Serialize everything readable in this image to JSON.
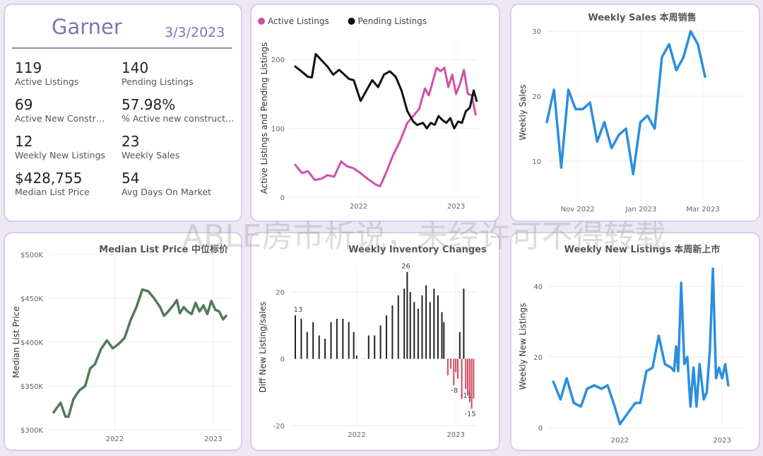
{
  "kpi": {
    "city": "Garner",
    "date": "3/3/2023",
    "metrics": [
      {
        "value": "119",
        "label": "Active Listings"
      },
      {
        "value": "140",
        "label": "Pending Listings"
      },
      {
        "value": "69",
        "label": "Active New Constructi..."
      },
      {
        "value": "57.98%",
        "label": "% Active new constructions"
      },
      {
        "value": "12",
        "label": "Weekly New Listings"
      },
      {
        "value": "23",
        "label": "Weekly Sales"
      },
      {
        "value": "$428,755",
        "label": "Median List Price"
      },
      {
        "value": "54",
        "label": "Avg Days On Market"
      }
    ]
  },
  "watermark": "ABLE房市析说，未经许可不得转载",
  "colors": {
    "active": "#d050a8",
    "pending": "#111111",
    "blue": "#2b8ee0",
    "green": "#527a5a",
    "negative": "#d04a5e",
    "grid": "#eeeeee"
  },
  "chart_data": [
    {
      "id": "listings",
      "type": "line",
      "title": "",
      "xlabel": "",
      "ylabel": "Active Listings and Pending Listings",
      "legend": "top-left",
      "ylim": [
        0,
        230
      ],
      "yticks": [
        0,
        100,
        200
      ],
      "xrange": [
        2021.3,
        2023.22
      ],
      "xticks": [
        {
          "x": 2022.0,
          "label": "2022"
        },
        {
          "x": 2023.0,
          "label": "2023"
        }
      ],
      "series": [
        {
          "name": "Active Listings",
          "color": "#d050a8",
          "points": [
            [
              2021.35,
              47
            ],
            [
              2021.42,
              35
            ],
            [
              2021.48,
              38
            ],
            [
              2021.55,
              25
            ],
            [
              2021.62,
              27
            ],
            [
              2021.68,
              32
            ],
            [
              2021.75,
              30
            ],
            [
              2021.82,
              52
            ],
            [
              2021.88,
              45
            ],
            [
              2021.95,
              42
            ],
            [
              2022.02,
              35
            ],
            [
              2022.1,
              26
            ],
            [
              2022.18,
              18
            ],
            [
              2022.22,
              16
            ],
            [
              2022.28,
              35
            ],
            [
              2022.35,
              60
            ],
            [
              2022.42,
              80
            ],
            [
              2022.5,
              108
            ],
            [
              2022.56,
              118
            ],
            [
              2022.62,
              128
            ],
            [
              2022.68,
              158
            ],
            [
              2022.72,
              148
            ],
            [
              2022.76,
              168
            ],
            [
              2022.8,
              188
            ],
            [
              2022.84,
              183
            ],
            [
              2022.88,
              188
            ],
            [
              2022.92,
              160
            ],
            [
              2022.96,
              178
            ],
            [
              2023.0,
              150
            ],
            [
              2023.04,
              165
            ],
            [
              2023.08,
              185
            ],
            [
              2023.12,
              150
            ],
            [
              2023.16,
              148
            ],
            [
              2023.2,
              120
            ]
          ]
        },
        {
          "name": "Pending Listings",
          "color": "#111111",
          "points": [
            [
              2021.35,
              190
            ],
            [
              2021.42,
              182
            ],
            [
              2021.48,
              175
            ],
            [
              2021.52,
              174
            ],
            [
              2021.56,
              208
            ],
            [
              2021.6,
              202
            ],
            [
              2021.68,
              190
            ],
            [
              2021.74,
              178
            ],
            [
              2021.8,
              185
            ],
            [
              2021.84,
              180
            ],
            [
              2021.9,
              172
            ],
            [
              2021.95,
              170
            ],
            [
              2022.02,
              140
            ],
            [
              2022.08,
              155
            ],
            [
              2022.14,
              170
            ],
            [
              2022.2,
              160
            ],
            [
              2022.26,
              178
            ],
            [
              2022.32,
              183
            ],
            [
              2022.38,
              175
            ],
            [
              2022.44,
              155
            ],
            [
              2022.5,
              125
            ],
            [
              2022.56,
              110
            ],
            [
              2022.6,
              105
            ],
            [
              2022.66,
              108
            ],
            [
              2022.7,
              100
            ],
            [
              2022.74,
              108
            ],
            [
              2022.78,
              105
            ],
            [
              2022.82,
              118
            ],
            [
              2022.86,
              112
            ],
            [
              2022.9,
              108
            ],
            [
              2022.94,
              115
            ],
            [
              2022.98,
              100
            ],
            [
              2023.02,
              110
            ],
            [
              2023.06,
              108
            ],
            [
              2023.1,
              125
            ],
            [
              2023.14,
              130
            ],
            [
              2023.18,
              155
            ],
            [
              2023.21,
              140
            ]
          ]
        }
      ]
    },
    {
      "id": "sales",
      "type": "line",
      "title": "Weekly Sales 本周销售",
      "xlabel": "",
      "ylabel": "Weekly Sales",
      "ylim": [
        4,
        31
      ],
      "yticks": [
        10,
        20,
        30
      ],
      "xrange": [
        0,
        27.5
      ],
      "xticks": [
        {
          "x": 4.3,
          "label": "Nov 2022"
        },
        {
          "x": 13.1,
          "label": "Jan 2023"
        },
        {
          "x": 21.7,
          "label": "Mar 2023"
        }
      ],
      "series": [
        {
          "name": "",
          "color": "#2b8ee0",
          "values": [
            16,
            21,
            9,
            21,
            18,
            18,
            19,
            13,
            16,
            12,
            14,
            15,
            8,
            16,
            17,
            15,
            26,
            28,
            24,
            26,
            30,
            28,
            23
          ]
        }
      ]
    },
    {
      "id": "median",
      "type": "line",
      "title": "Median List Price  中位标价",
      "xlabel": "",
      "ylabel": "Median List Price",
      "ylim": [
        300000,
        500000
      ],
      "yticks": [
        {
          "v": 300000,
          "label": "$300K"
        },
        {
          "v": 350000,
          "label": "$350K"
        },
        {
          "v": 400000,
          "label": "$400K"
        },
        {
          "v": 450000,
          "label": "$450K"
        },
        {
          "v": 500000,
          "label": "$500K"
        }
      ],
      "xrange": [
        2021.33,
        2023.18
      ],
      "xticks": [
        {
          "x": 2022.0,
          "label": "2022"
        },
        {
          "x": 2023.0,
          "label": "2023"
        }
      ],
      "series": [
        {
          "name": "",
          "color": "#527a5a",
          "points": [
            [
              2021.38,
              320
            ],
            [
              2021.45,
              331
            ],
            [
              2021.5,
              315
            ],
            [
              2021.53,
              315
            ],
            [
              2021.58,
              335
            ],
            [
              2021.64,
              345
            ],
            [
              2021.7,
              350
            ],
            [
              2021.75,
              370
            ],
            [
              2021.8,
              375
            ],
            [
              2021.86,
              392
            ],
            [
              2021.92,
              402
            ],
            [
              2021.98,
              393
            ],
            [
              2022.04,
              398
            ],
            [
              2022.1,
              405
            ],
            [
              2022.16,
              425
            ],
            [
              2022.22,
              440
            ],
            [
              2022.28,
              460
            ],
            [
              2022.34,
              458
            ],
            [
              2022.4,
              450
            ],
            [
              2022.46,
              440
            ],
            [
              2022.5,
              430
            ],
            [
              2022.55,
              436
            ],
            [
              2022.6,
              443
            ],
            [
              2022.63,
              448
            ],
            [
              2022.66,
              433
            ],
            [
              2022.7,
              440
            ],
            [
              2022.74,
              435
            ],
            [
              2022.78,
              432
            ],
            [
              2022.82,
              445
            ],
            [
              2022.86,
              435
            ],
            [
              2022.9,
              442
            ],
            [
              2022.94,
              432
            ],
            [
              2022.98,
              447
            ],
            [
              2023.02,
              437
            ],
            [
              2023.06,
              435
            ],
            [
              2023.1,
              426
            ],
            [
              2023.13,
              430
            ]
          ]
        }
      ]
    },
    {
      "id": "inventory",
      "type": "bar",
      "title": "Weekly Inventory Changes",
      "xlabel": "",
      "ylabel": "Diff New Listing/sales",
      "ylim": [
        -20,
        27
      ],
      "yticks": [
        -20,
        0,
        20
      ],
      "xrange": [
        2021.33,
        2023.22
      ],
      "xticks": [
        {
          "x": 2022.0,
          "label": "2022"
        },
        {
          "x": 2023.0,
          "label": "2023"
        }
      ],
      "data_labels": [
        {
          "x": 2021.38,
          "v": 13,
          "label": "13"
        },
        {
          "x": 2022.51,
          "v": 26,
          "label": "26"
        },
        {
          "x": 2023.0,
          "v": -8,
          "label": "-8"
        },
        {
          "x": 2023.12,
          "v": -11,
          "label": "-11"
        },
        {
          "x": 2023.16,
          "v": -15,
          "label": "-15"
        }
      ],
      "points": [
        [
          2021.38,
          13
        ],
        [
          2021.44,
          12
        ],
        [
          2021.5,
          8
        ],
        [
          2021.56,
          11
        ],
        [
          2021.62,
          7
        ],
        [
          2021.68,
          6
        ],
        [
          2021.74,
          11
        ],
        [
          2021.8,
          12
        ],
        [
          2021.86,
          12
        ],
        [
          2021.92,
          11
        ],
        [
          2021.97,
          8
        ],
        [
          2022.0,
          1
        ],
        [
          2022.12,
          7
        ],
        [
          2022.18,
          7
        ],
        [
          2022.24,
          10
        ],
        [
          2022.3,
          13
        ],
        [
          2022.36,
          16
        ],
        [
          2022.42,
          19
        ],
        [
          2022.48,
          21
        ],
        [
          2022.51,
          26
        ],
        [
          2022.54,
          20
        ],
        [
          2022.58,
          17
        ],
        [
          2022.62,
          15
        ],
        [
          2022.66,
          19
        ],
        [
          2022.7,
          22
        ],
        [
          2022.74,
          17
        ],
        [
          2022.78,
          21
        ],
        [
          2022.82,
          19
        ],
        [
          2022.86,
          14
        ],
        [
          2022.88,
          11
        ],
        [
          2022.92,
          -5
        ],
        [
          2022.95,
          -3
        ],
        [
          2022.98,
          -8
        ],
        [
          2023.0,
          -4
        ],
        [
          2023.02,
          -6
        ],
        [
          2023.04,
          8
        ],
        [
          2023.06,
          -12
        ],
        [
          2023.08,
          21
        ],
        [
          2023.1,
          -9
        ],
        [
          2023.12,
          -11
        ],
        [
          2023.14,
          -13
        ],
        [
          2023.16,
          -15
        ],
        [
          2023.18,
          -12
        ]
      ]
    },
    {
      "id": "newlistings",
      "type": "line",
      "title": "Weekly New Listings  本周新上市",
      "xlabel": "",
      "ylabel": "Weekly New Listings",
      "ylim": [
        -1,
        47
      ],
      "yticks": [
        0,
        20,
        40
      ],
      "xrange": [
        2021.3,
        2023.22
      ],
      "xticks": [
        {
          "x": 2022.0,
          "label": "2022"
        },
        {
          "x": 2023.0,
          "label": "2023"
        }
      ],
      "series": [
        {
          "name": "",
          "color": "#2b8ee0",
          "points": [
            [
              2021.35,
              13
            ],
            [
              2021.42,
              8
            ],
            [
              2021.48,
              14
            ],
            [
              2021.55,
              7
            ],
            [
              2021.62,
              6
            ],
            [
              2021.68,
              11
            ],
            [
              2021.75,
              12
            ],
            [
              2021.82,
              11
            ],
            [
              2021.88,
              12
            ],
            [
              2021.95,
              6
            ],
            [
              2022.0,
              1
            ],
            [
              2022.05,
              3
            ],
            [
              2022.1,
              5
            ],
            [
              2022.15,
              7
            ],
            [
              2022.2,
              7
            ],
            [
              2022.26,
              16
            ],
            [
              2022.32,
              17
            ],
            [
              2022.38,
              26
            ],
            [
              2022.44,
              18
            ],
            [
              2022.5,
              17
            ],
            [
              2022.53,
              16
            ],
            [
              2022.55,
              23
            ],
            [
              2022.57,
              16
            ],
            [
              2022.6,
              41
            ],
            [
              2022.63,
              18
            ],
            [
              2022.66,
              20
            ],
            [
              2022.69,
              6
            ],
            [
              2022.72,
              17
            ],
            [
              2022.75,
              6
            ],
            [
              2022.78,
              18
            ],
            [
              2022.82,
              8
            ],
            [
              2022.85,
              10
            ],
            [
              2022.88,
              22
            ],
            [
              2022.91,
              45
            ],
            [
              2022.94,
              14
            ],
            [
              2022.97,
              17
            ],
            [
              2023.0,
              14
            ],
            [
              2023.03,
              18
            ],
            [
              2023.06,
              12
            ]
          ]
        }
      ]
    }
  ]
}
